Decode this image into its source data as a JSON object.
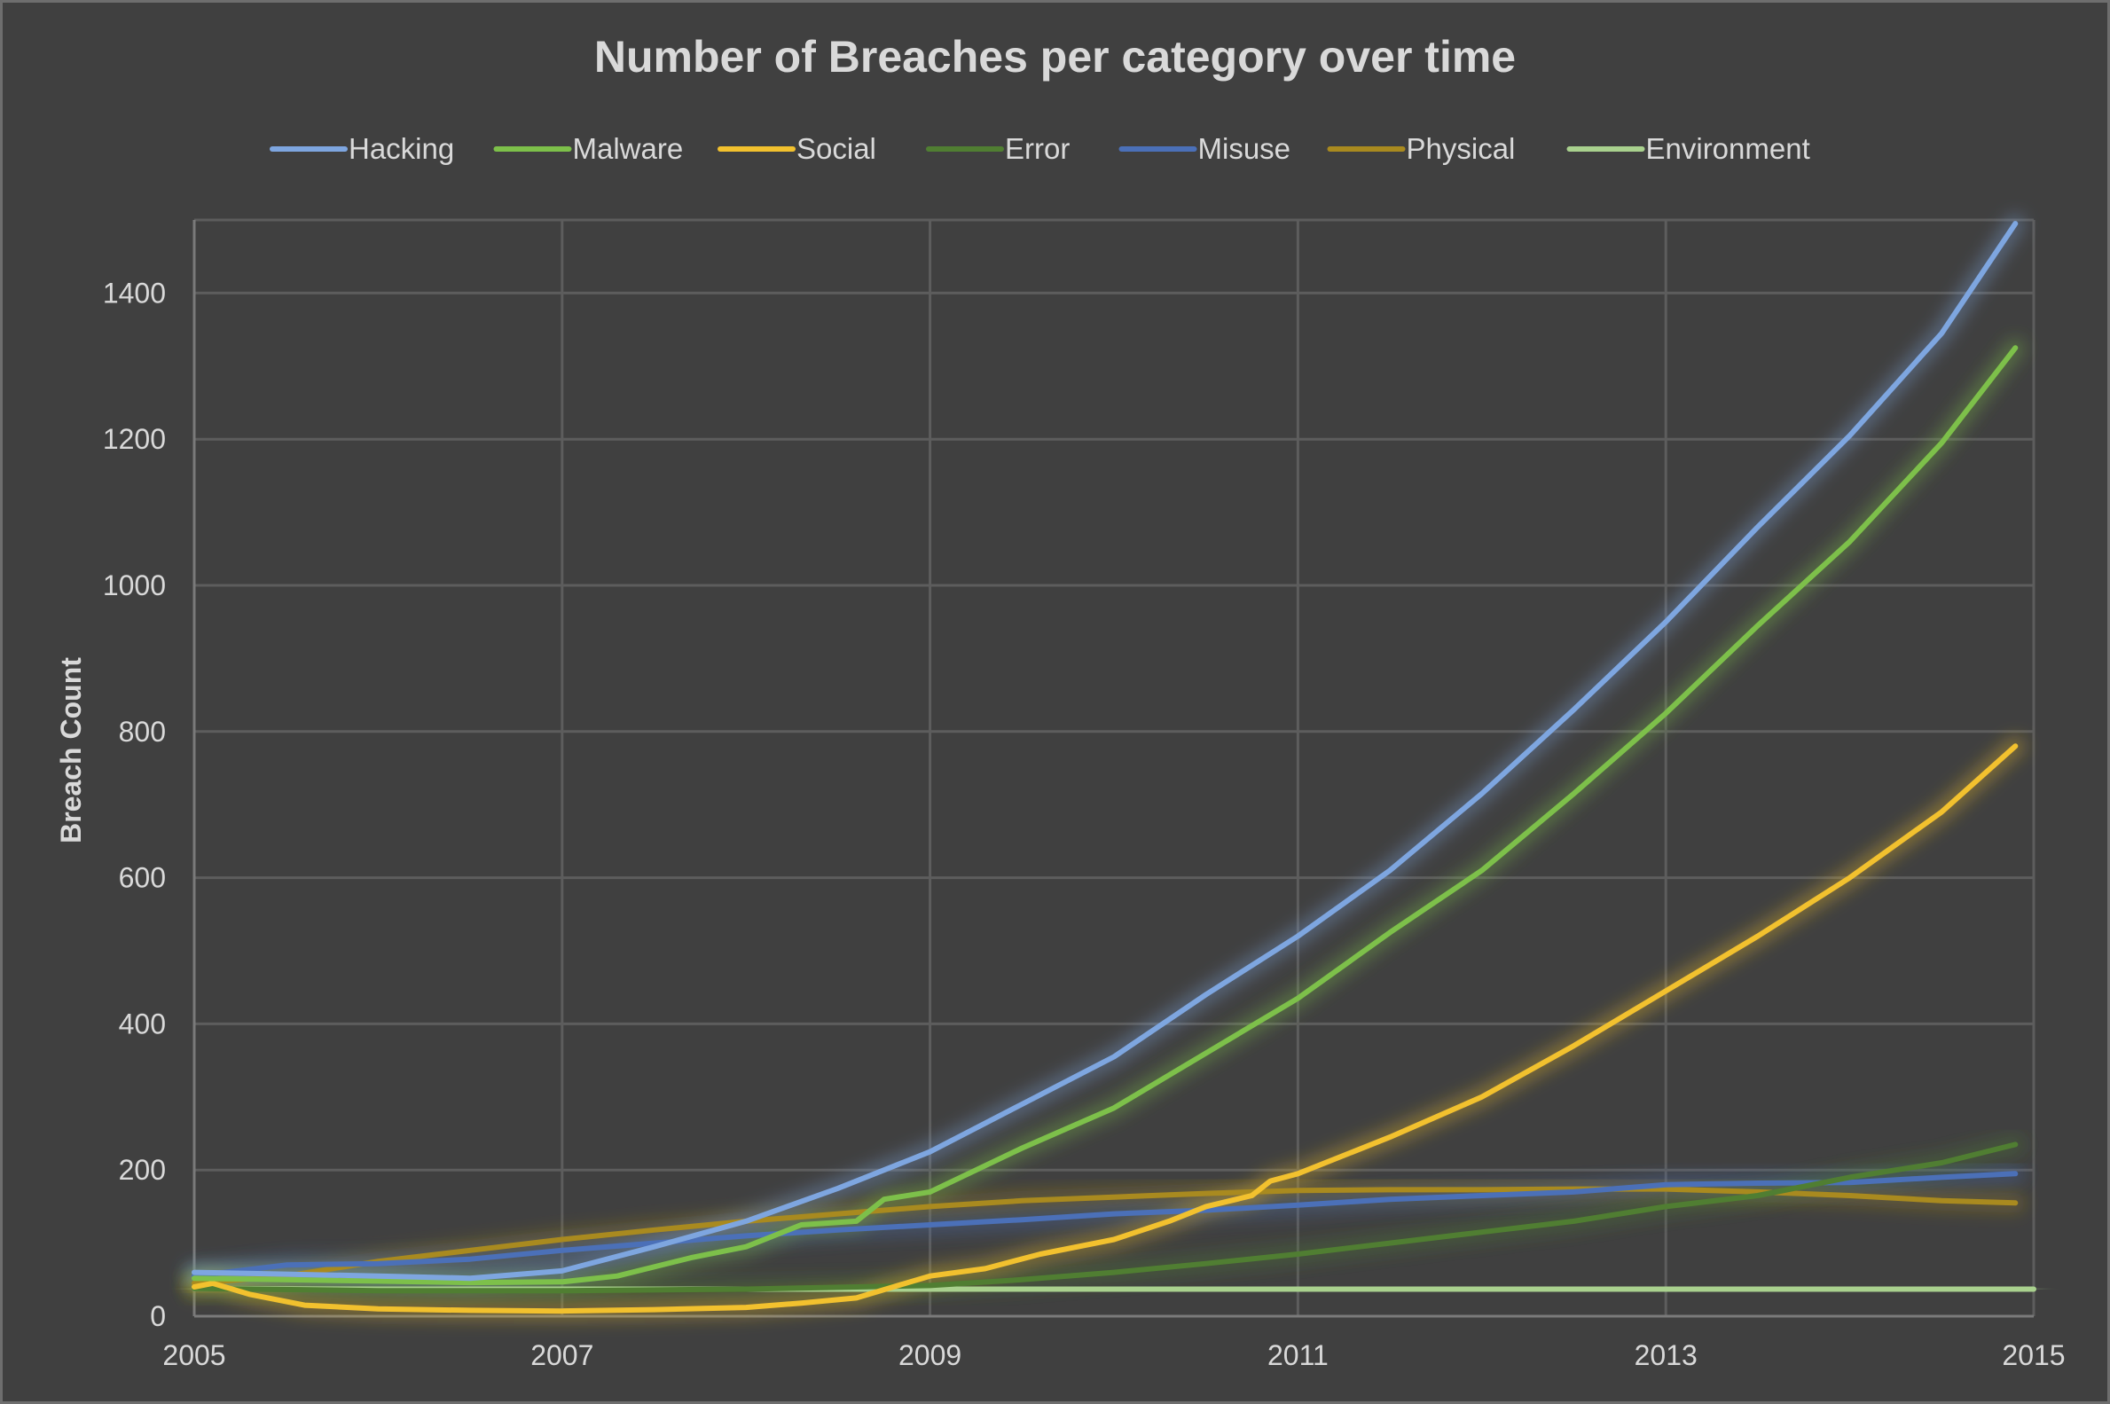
{
  "chart_data": {
    "type": "line",
    "title": "Number of Breaches per category over time",
    "xlabel": "",
    "ylabel": "Breach Count",
    "xlim": [
      2005,
      2015
    ],
    "ylim": [
      0,
      1500
    ],
    "x_ticks": [
      "2005",
      "2007",
      "2009",
      "2011",
      "2013",
      "2015"
    ],
    "y_ticks": [
      "0",
      "200",
      "400",
      "600",
      "800",
      "1000",
      "1200",
      "1400"
    ],
    "grid": true,
    "legend_position": "top",
    "background": "#404040",
    "series": [
      {
        "name": "Hacking",
        "color": "#7ea6e0",
        "points": [
          [
            2005,
            60
          ],
          [
            2006,
            55
          ],
          [
            2006.5,
            52
          ],
          [
            2007,
            62
          ],
          [
            2007.5,
            95
          ],
          [
            2008,
            130
          ],
          [
            2008.5,
            175
          ],
          [
            2009,
            225
          ],
          [
            2009.5,
            290
          ],
          [
            2010,
            355
          ],
          [
            2010.5,
            440
          ],
          [
            2011,
            520
          ],
          [
            2011.5,
            610
          ],
          [
            2012,
            715
          ],
          [
            2012.5,
            830
          ],
          [
            2013,
            950
          ],
          [
            2013.5,
            1080
          ],
          [
            2014,
            1205
          ],
          [
            2014.5,
            1345
          ],
          [
            2014.9,
            1495
          ]
        ]
      },
      {
        "name": "Malware",
        "color": "#7dc04a",
        "points": [
          [
            2005,
            52
          ],
          [
            2006,
            48
          ],
          [
            2006.5,
            46
          ],
          [
            2007,
            47
          ],
          [
            2007.3,
            55
          ],
          [
            2007.7,
            80
          ],
          [
            2008,
            95
          ],
          [
            2008.3,
            125
          ],
          [
            2008.6,
            130
          ],
          [
            2008.75,
            160
          ],
          [
            2009,
            170
          ],
          [
            2009.5,
            230
          ],
          [
            2010,
            285
          ],
          [
            2010.5,
            360
          ],
          [
            2011,
            435
          ],
          [
            2011.5,
            525
          ],
          [
            2012,
            610
          ],
          [
            2012.5,
            715
          ],
          [
            2013,
            825
          ],
          [
            2013.5,
            945
          ],
          [
            2014,
            1060
          ],
          [
            2014.5,
            1195
          ],
          [
            2014.9,
            1325
          ]
        ]
      },
      {
        "name": "Social",
        "color": "#f2c12e",
        "points": [
          [
            2005,
            40
          ],
          [
            2005.1,
            45
          ],
          [
            2005.3,
            30
          ],
          [
            2005.6,
            15
          ],
          [
            2006,
            10
          ],
          [
            2006.5,
            8
          ],
          [
            2007,
            7
          ],
          [
            2007.5,
            9
          ],
          [
            2008,
            12
          ],
          [
            2008.3,
            18
          ],
          [
            2008.6,
            25
          ],
          [
            2008.8,
            40
          ],
          [
            2009,
            55
          ],
          [
            2009.3,
            65
          ],
          [
            2009.6,
            85
          ],
          [
            2010,
            105
          ],
          [
            2010.3,
            130
          ],
          [
            2010.5,
            150
          ],
          [
            2010.75,
            165
          ],
          [
            2010.85,
            185
          ],
          [
            2011,
            195
          ],
          [
            2011.5,
            245
          ],
          [
            2012,
            300
          ],
          [
            2012.5,
            370
          ],
          [
            2013,
            445
          ],
          [
            2013.5,
            520
          ],
          [
            2014,
            600
          ],
          [
            2014.5,
            690
          ],
          [
            2014.9,
            780
          ]
        ]
      },
      {
        "name": "Error",
        "color": "#507e32",
        "points": [
          [
            2005,
            38
          ],
          [
            2006,
            35
          ],
          [
            2007,
            35
          ],
          [
            2008,
            37
          ],
          [
            2009,
            42
          ],
          [
            2009.5,
            50
          ],
          [
            2010,
            60
          ],
          [
            2010.5,
            72
          ],
          [
            2011,
            85
          ],
          [
            2011.5,
            100
          ],
          [
            2012,
            115
          ],
          [
            2012.5,
            130
          ],
          [
            2013,
            150
          ],
          [
            2013.5,
            165
          ],
          [
            2014,
            190
          ],
          [
            2014.5,
            210
          ],
          [
            2014.9,
            235
          ]
        ]
      },
      {
        "name": "Misuse",
        "color": "#4b70b8",
        "points": [
          [
            2005,
            55
          ],
          [
            2005.5,
            70
          ],
          [
            2006,
            72
          ],
          [
            2006.5,
            78
          ],
          [
            2007,
            90
          ],
          [
            2007.5,
            100
          ],
          [
            2008,
            110
          ],
          [
            2008.5,
            118
          ],
          [
            2009,
            125
          ],
          [
            2009.5,
            132
          ],
          [
            2010,
            140
          ],
          [
            2010.5,
            145
          ],
          [
            2011,
            152
          ],
          [
            2011.5,
            160
          ],
          [
            2012,
            165
          ],
          [
            2012.5,
            170
          ],
          [
            2013,
            180
          ],
          [
            2013.5,
            182
          ],
          [
            2014,
            183
          ],
          [
            2014.5,
            190
          ],
          [
            2014.9,
            195
          ]
        ]
      },
      {
        "name": "Physical",
        "color": "#a98a1f",
        "points": [
          [
            2005,
            45
          ],
          [
            2005.5,
            55
          ],
          [
            2006,
            75
          ],
          [
            2006.5,
            90
          ],
          [
            2007,
            105
          ],
          [
            2007.5,
            118
          ],
          [
            2008,
            130
          ],
          [
            2008.5,
            140
          ],
          [
            2009,
            150
          ],
          [
            2009.5,
            158
          ],
          [
            2010,
            163
          ],
          [
            2010.5,
            168
          ],
          [
            2011,
            172
          ],
          [
            2011.5,
            173
          ],
          [
            2012,
            173
          ],
          [
            2012.5,
            174
          ],
          [
            2013,
            174
          ],
          [
            2013.5,
            170
          ],
          [
            2014,
            165
          ],
          [
            2014.5,
            158
          ],
          [
            2014.9,
            155
          ]
        ]
      },
      {
        "name": "Environment",
        "color": "#a9d18e",
        "points": [
          [
            2005,
            38
          ],
          [
            2006,
            37
          ],
          [
            2007,
            37
          ],
          [
            2008,
            37
          ],
          [
            2009,
            37
          ],
          [
            2010,
            37
          ],
          [
            2011,
            37
          ],
          [
            2012,
            37
          ],
          [
            2013,
            37
          ],
          [
            2014,
            37
          ],
          [
            2015,
            37
          ]
        ]
      }
    ]
  }
}
